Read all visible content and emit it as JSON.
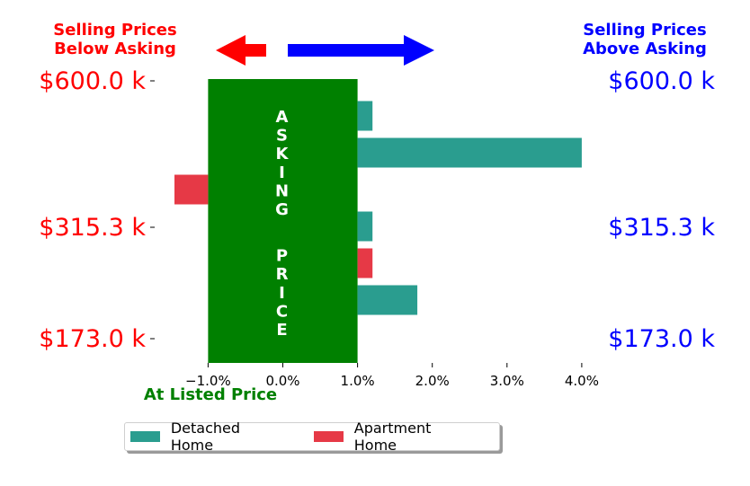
{
  "chart_data": {
    "type": "bar",
    "orientation": "horizontal",
    "xlabel": "At Listed Price",
    "x_ticks": [
      "−1.0%",
      "0.0%",
      "1.0%",
      "2.0%",
      "3.0%",
      "4.0%"
    ],
    "x_tick_values": [
      -1.0,
      0.0,
      1.0,
      2.0,
      3.0,
      4.0
    ],
    "xlim": [
      -2.0,
      4.0
    ],
    "left_header": "Selling Prices\nBelow Asking",
    "right_header": "Selling Prices\nAbove Asking",
    "price_levels": [
      "$600.0 k",
      "$315.3 k",
      "$173.0 k"
    ],
    "asking_band": {
      "from": -1.0,
      "to": 1.0,
      "label": "ASKING PRICE",
      "color": "#008000"
    },
    "rows": [
      {
        "series": "Detached Home",
        "value": 1.2
      },
      {
        "series": "Detached Home",
        "value": 4.0
      },
      {
        "series": "Apartment Home",
        "value": -1.45
      },
      {
        "series": "Detached Home",
        "value": 1.2
      },
      {
        "series": "Apartment Home",
        "value": 1.2
      },
      {
        "series": "Detached Home",
        "value": 1.8
      }
    ],
    "series": [
      {
        "name": "Detached Home",
        "color": "#2a9d8f"
      },
      {
        "name": "Apartment Home",
        "color": "#e63946"
      }
    ],
    "colors": {
      "below": "#ff0000",
      "above": "#0000ff",
      "listed": "#008000"
    },
    "arrows": {
      "left": "red-left-arrow",
      "right": "blue-right-arrow"
    },
    "legend_position": "bottom"
  }
}
